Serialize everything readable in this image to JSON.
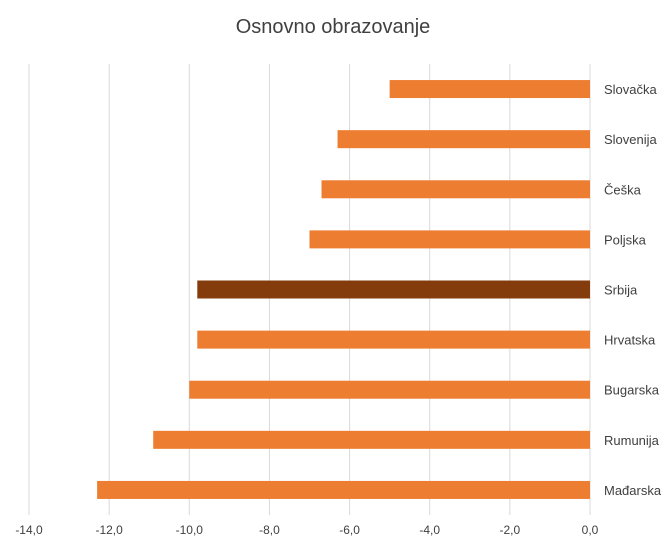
{
  "chart_data": {
    "type": "bar",
    "orientation": "horizontal",
    "title": "Osnovno obrazovanje",
    "categories": [
      "Slovačka",
      "Slovenija",
      "Češka",
      "Poljska",
      "Srbija",
      "Hrvatska",
      "Bugarska",
      "Rumunija",
      "Mađarska"
    ],
    "values": [
      -5.0,
      -6.3,
      -6.7,
      -7.0,
      -9.8,
      -9.8,
      -10.0,
      -10.9,
      -12.3
    ],
    "highlight_category": "Srbija",
    "colors": {
      "bar": "#ED7D31",
      "highlight": "#843C0C",
      "grid": "#D9D9D9",
      "text": "#404040"
    },
    "xlim": [
      -14,
      0
    ],
    "x_ticks": [
      -14,
      -12,
      -10,
      -8,
      -6,
      -4,
      -2,
      0
    ],
    "x_tick_labels": [
      "-14,0",
      "-12,0",
      "-10,0",
      "-8,0",
      "-6,0",
      "-4,0",
      "-2,0",
      "0,0"
    ],
    "grid": true,
    "legend": "none",
    "category_axis_position": "right"
  }
}
